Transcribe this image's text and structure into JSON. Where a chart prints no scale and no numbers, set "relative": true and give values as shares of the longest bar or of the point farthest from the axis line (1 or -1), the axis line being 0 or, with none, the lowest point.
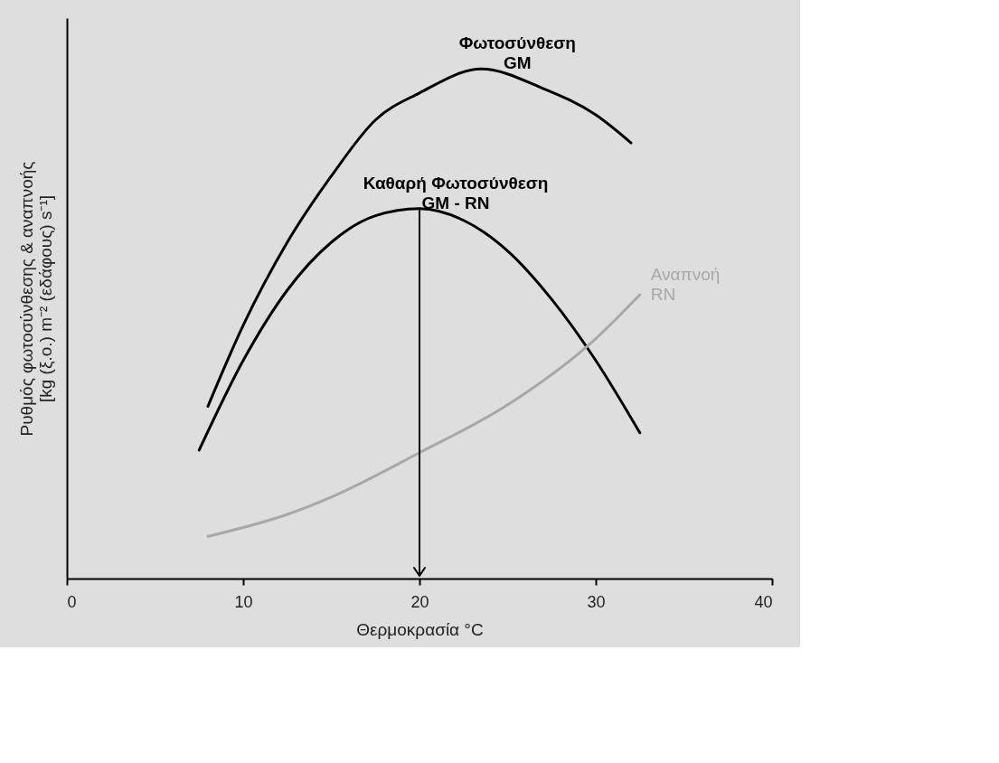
{
  "chart_data": {
    "type": "line",
    "relative": true,
    "xlabel": "Θερμοκρασία °C",
    "ylabel": "Ρυθμός φωτοσύνθεσης & αναπνοής\n[kg (ξ.ο.) m⁻² (εδάφους) s⁻¹]",
    "xlim": [
      0,
      40
    ],
    "xticks": [
      0,
      10,
      20,
      30,
      40
    ],
    "tick_labels": "x",
    "line_style": "solid",
    "series": [
      {
        "name": "Φωτοσύνθεση\nGM",
        "color": "#000000",
        "x": [
          8,
          10,
          12.5,
          15,
          17.5,
          20,
          23.5,
          27,
          30,
          32
        ],
        "values": [
          0.338,
          0.497,
          0.66,
          0.79,
          0.9,
          0.953,
          1.0,
          0.962,
          0.91,
          0.855
        ]
      },
      {
        "name": "Καθαρή Φωτοσύνθεση\nGM - RN",
        "color": "#000000",
        "x": [
          7.5,
          10,
          12.5,
          15,
          17.5,
          20,
          22.5,
          25,
          27.5,
          30,
          32.5
        ],
        "values": [
          0.252,
          0.428,
          0.566,
          0.66,
          0.712,
          0.726,
          0.703,
          0.643,
          0.548,
          0.428,
          0.286
        ]
      },
      {
        "name": "Αναπνοή\nRN",
        "color": "#a8a8a8",
        "x": [
          8,
          12.5,
          15,
          20,
          25,
          30,
          32.5
        ],
        "values": [
          0.083,
          0.126,
          0.16,
          0.247,
          0.341,
          0.471,
          0.557
        ]
      }
    ],
    "ref_lines": [
      {
        "axis": "x",
        "value": 20,
        "color": "#000000"
      }
    ]
  }
}
